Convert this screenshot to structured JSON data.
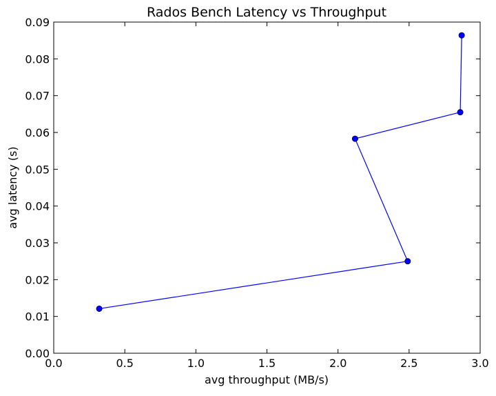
{
  "chart_data": {
    "type": "line",
    "title": "Rados Bench Latency vs Throughput",
    "xlabel": "avg throughput (MB/s)",
    "ylabel": "avg latency (s)",
    "xlim": [
      0.0,
      3.0
    ],
    "ylim": [
      0.0,
      0.09
    ],
    "x_ticks": [
      "0.0",
      "0.5",
      "1.0",
      "1.5",
      "2.0",
      "2.5",
      "3.0"
    ],
    "y_ticks": [
      "0.00",
      "0.01",
      "0.02",
      "0.03",
      "0.04",
      "0.05",
      "0.06",
      "0.07",
      "0.08",
      "0.09"
    ],
    "grid": false,
    "series": [
      {
        "color": "#0000ff",
        "marker": "circle",
        "x": [
          0.32,
          2.49,
          2.12,
          2.86,
          2.87
        ],
        "y": [
          0.0121,
          0.025,
          0.0583,
          0.0655,
          0.0864
        ]
      }
    ]
  }
}
